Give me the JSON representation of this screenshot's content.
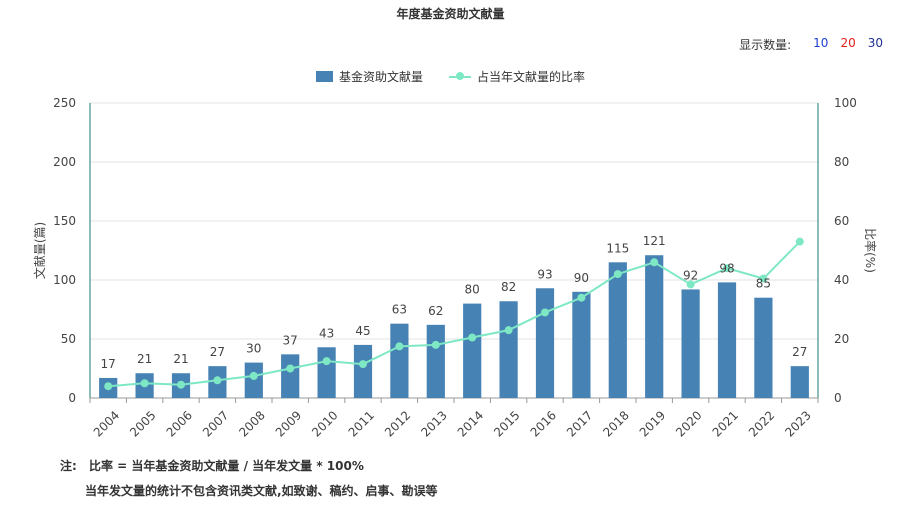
{
  "title": "年度基金资助文献量",
  "count_selector": {
    "label": "显示数量:",
    "options": [
      "10",
      "20",
      "30"
    ],
    "option_colors": [
      "#1f3fd1",
      "#e0201a",
      "#1f2f8f"
    ]
  },
  "legend": {
    "bar": "基金资助文献量",
    "line": "占当年文献量的比率"
  },
  "notes": {
    "prefix": "注:",
    "line1": "比率 = 当年基金资助文献量 / 当年发文量 * 100%",
    "line2": "当年发文量的统计不包含资讯类文献,如致谢、稿约、启事、勘误等"
  },
  "chart_data": {
    "type": "bar",
    "categories": [
      "2004",
      "2005",
      "2006",
      "2007",
      "2008",
      "2009",
      "2010",
      "2011",
      "2012",
      "2013",
      "2014",
      "2015",
      "2016",
      "2017",
      "2018",
      "2019",
      "2020",
      "2021",
      "2022",
      "2023"
    ],
    "series": [
      {
        "name": "基金资助文献量",
        "type": "bar",
        "axis": "left",
        "color": "#4682b4",
        "values": [
          17,
          21,
          21,
          27,
          30,
          37,
          43,
          45,
          63,
          62,
          80,
          82,
          93,
          90,
          115,
          121,
          92,
          98,
          85,
          27
        ]
      },
      {
        "name": "占当年文献量的比率",
        "type": "line",
        "axis": "right",
        "color": "#7ee8c4",
        "values": [
          4,
          5,
          4.5,
          6,
          7.5,
          10,
          12.5,
          11.5,
          17.5,
          18,
          20.5,
          23,
          29,
          34,
          42,
          46,
          38.5,
          44,
          40.5,
          53
        ]
      }
    ],
    "ylabel": "文献量(篇)",
    "ylabel_right": "比率(%)",
    "ylim": [
      0,
      250
    ],
    "ylim_right": [
      0,
      100
    ],
    "yticks": [
      "0",
      "50",
      "100",
      "150",
      "200",
      "250"
    ],
    "yticks_right": [
      "0",
      "20",
      "40",
      "60",
      "80",
      "100"
    ],
    "grid": true,
    "legend_position": "top-center"
  }
}
